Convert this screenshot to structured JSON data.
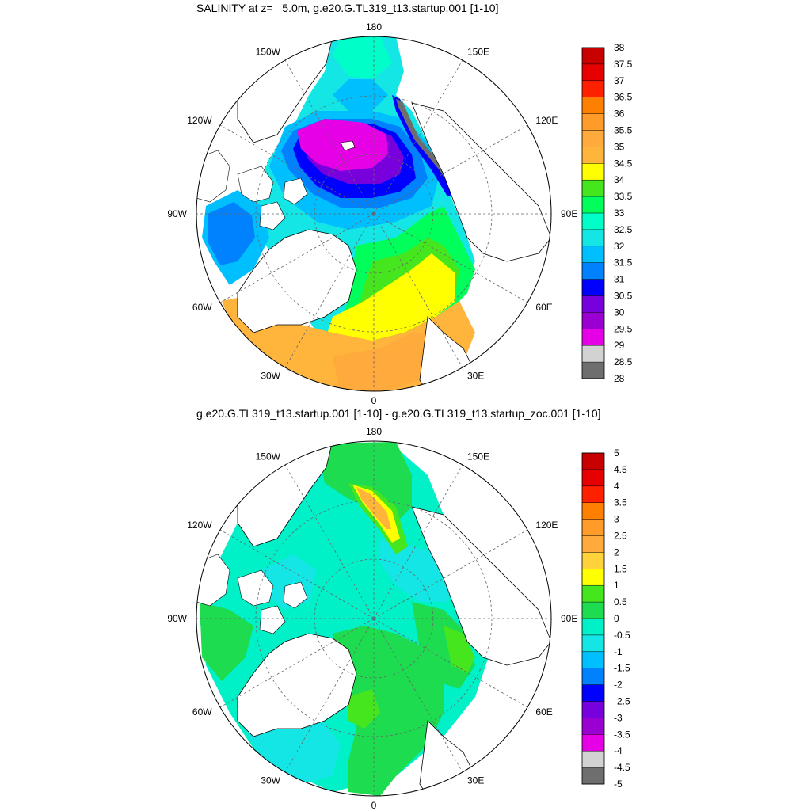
{
  "top": {
    "title": "SALINITY at z=   5.0m, g.e20.G.TL319_t13.startup.001 [1-10]",
    "longitude_labels": [
      "180",
      "150E",
      "120E",
      "90E",
      "60E",
      "30E",
      "0",
      "30W",
      "60W",
      "90W",
      "120W",
      "150W"
    ],
    "colorbar": {
      "labels": [
        "38",
        "37.5",
        "37",
        "36.5",
        "36",
        "35.5",
        "35",
        "34.5",
        "34",
        "33.5",
        "33",
        "32.5",
        "32",
        "31.5",
        "31",
        "30.5",
        "30",
        "29.5",
        "29",
        "28.5",
        "28"
      ],
      "colors": [
        "#c80000",
        "#e60000",
        "#ff2000",
        "#ff8000",
        "#ff9b28",
        "#ffaa3c",
        "#ffb43c",
        "#ffff00",
        "#46e61e",
        "#00ff5a",
        "#00ffc8",
        "#14e6e6",
        "#00bfff",
        "#0082ff",
        "#0000ff",
        "#7800dc",
        "#9b00d2",
        "#e600e6",
        "#d2d2d2",
        "#6e6e6e"
      ]
    }
  },
  "bottom": {
    "title": "g.e20.G.TL319_t13.startup.001 [1-10] - g.e20.G.TL319_t13.startup_zoc.001 [1-10]",
    "longitude_labels": [
      "180",
      "150E",
      "120E",
      "90E",
      "60E",
      "30E",
      "0",
      "30W",
      "60W",
      "90W",
      "120W",
      "150W"
    ],
    "colorbar": {
      "labels": [
        "5",
        "4.5",
        "4",
        "3.5",
        "3",
        "2.5",
        "2",
        "1.5",
        "1",
        "0.5",
        "0",
        "-0.5",
        "-1",
        "-1.5",
        "-2",
        "-2.5",
        "-3",
        "-3.5",
        "-4",
        "-4.5",
        "-5"
      ],
      "colors": [
        "#c80000",
        "#e60000",
        "#ff2000",
        "#ff8000",
        "#ff9b28",
        "#ffaa3c",
        "#ffd23c",
        "#ffff00",
        "#46e61e",
        "#1edc50",
        "#00f0c8",
        "#14e6e6",
        "#00bfff",
        "#0082ff",
        "#0000ff",
        "#7800dc",
        "#9b00d2",
        "#e600e6",
        "#d2d2d2",
        "#6e6e6e"
      ]
    }
  }
}
